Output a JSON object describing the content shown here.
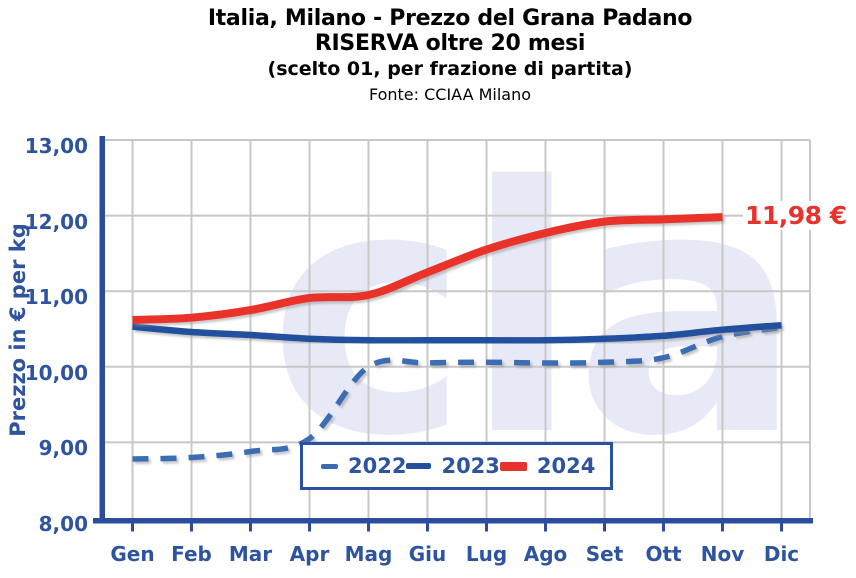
{
  "header": {
    "title_line1": "Italia, Milano - Prezzo del Grana Padano",
    "title_line2": "RISERVA oltre 20 mesi",
    "subtitle": "(scelto 01, per frazione di partita)",
    "source": "Fonte: CCIAA Milano"
  },
  "watermark_text": "clal",
  "colors": {
    "navy_text": "#2E549F",
    "axis": "#2C4D9E",
    "tick": "#2C4D9E",
    "gridline": "#C8C8C8",
    "watermark": "#E7EAF6",
    "background": "#FFFFFF",
    "annotation_red": "#E8332C"
  },
  "chart_data": {
    "type": "line",
    "title": "Italia, Milano - Prezzo del Grana Padano RISERVA oltre 20 mesi (scelto 01, per frazione di partita)",
    "source": "Fonte: CCIAA Milano",
    "xlabel": "",
    "ylabel": "Prezzo in € per kg",
    "ylim": [
      8,
      13
    ],
    "ytick_values": [
      13,
      12,
      11,
      10,
      9,
      8
    ],
    "ytick_labels": [
      "13,00",
      "12,00",
      "11,00",
      "10,00",
      "9,00",
      "8,00"
    ],
    "grid": "both",
    "line_smoothing": true,
    "legend_position": "bottom-center-inside",
    "categories": [
      "Gen",
      "Feb",
      "Mar",
      "Apr",
      "Mag",
      "Giu",
      "Lug",
      "Ago",
      "Set",
      "Ott",
      "Nov",
      "Dic"
    ],
    "series": [
      {
        "name": "2022",
        "style": "dashed",
        "color": "#3A6CB4",
        "stroke_width": 5.5,
        "values": [
          8.78,
          8.8,
          8.88,
          9.05,
          10.0,
          10.05,
          10.06,
          10.05,
          10.06,
          10.12,
          10.4,
          10.52
        ]
      },
      {
        "name": "2023",
        "style": "solid",
        "color": "#20509E",
        "stroke_width": 6.5,
        "values": [
          10.53,
          10.46,
          10.42,
          10.37,
          10.35,
          10.35,
          10.35,
          10.35,
          10.37,
          10.41,
          10.49,
          10.55
        ]
      },
      {
        "name": "2024",
        "style": "solid",
        "color": "#E8332C",
        "stroke_width": 8,
        "values": [
          10.62,
          10.65,
          10.75,
          10.91,
          10.95,
          11.25,
          11.55,
          11.77,
          11.92,
          11.95,
          11.98
        ]
      }
    ],
    "annotation": {
      "text": "11,98 €",
      "series": "2024",
      "month": "Nov",
      "value": 11.98
    }
  }
}
